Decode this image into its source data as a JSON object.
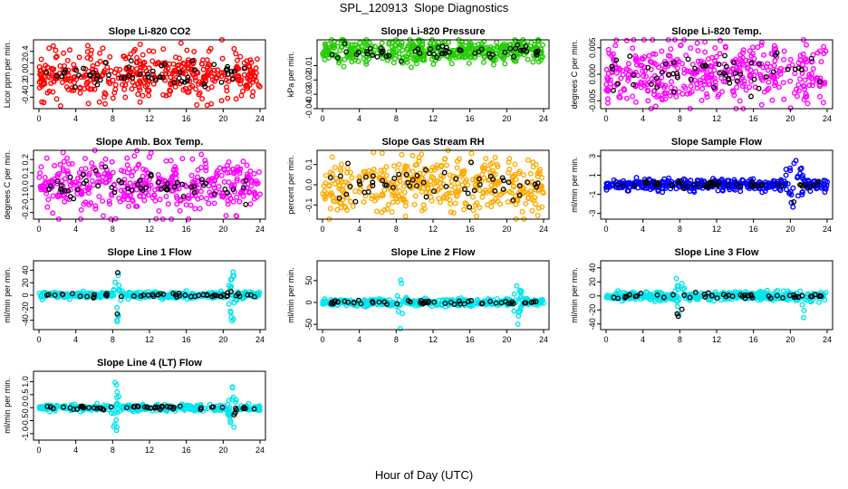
{
  "title": "SPL_120913  Slope Diagnostics",
  "xlabel": "Hour of Day (UTC)",
  "colors": {
    "black": "#000000",
    "red": "#ff0000",
    "green": "#22cc00",
    "magenta": "#ff00ff",
    "orange": "#ffaa00",
    "blue": "#0000ff",
    "cyan": "#00e5ee"
  },
  "chart_data": [
    {
      "type": "scatter",
      "title": "Slope Li-820 CO2",
      "ylabel": "Licor ppm per min.",
      "color": "red",
      "xlim": [
        0,
        24
      ],
      "ylim": [
        -0.6,
        0.6
      ],
      "xticks": [
        "0",
        "4",
        "8",
        "12",
        "16",
        "20",
        "24"
      ],
      "yticks": [
        "-0.4",
        "-0.2",
        "0.0",
        "0.2",
        "0.4"
      ],
      "spread": 0.22,
      "spikes": []
    },
    {
      "type": "scatter",
      "title": "Slope Li-820 Pressure",
      "ylabel": "kPa per min.",
      "color": "green",
      "xlim": [
        0,
        24
      ],
      "ylim": [
        -0.04,
        0.008
      ],
      "xticks": [
        "0",
        "4",
        "8",
        "12",
        "16",
        "20",
        "24"
      ],
      "yticks": [
        "-0.04",
        "-0.03",
        "-0.02",
        "-0.01"
      ],
      "center": 0.0,
      "spread": 0.004,
      "spikes": []
    },
    {
      "type": "scatter",
      "title": "Slope Li-820 Temp.",
      "ylabel": "degrees C per min.",
      "color": "magenta",
      "xlim": [
        0,
        24
      ],
      "ylim": [
        -0.0065,
        0.0065
      ],
      "xticks": [
        "0",
        "4",
        "8",
        "12",
        "16",
        "20",
        "24"
      ],
      "yticks": [
        "-0.005",
        "0.000",
        "0.005"
      ],
      "spread": 0.003,
      "spikes": []
    },
    {
      "type": "scatter",
      "title": "Slope Amb. Box Temp.",
      "ylabel": "degrees C per min.",
      "color": "magenta",
      "xlim": [
        0,
        24
      ],
      "ylim": [
        -0.25,
        0.27
      ],
      "xticks": [
        "0",
        "4",
        "8",
        "12",
        "16",
        "20",
        "24"
      ],
      "yticks": [
        "-0.2",
        "-0.1",
        "0.0",
        "0.1",
        "0.2"
      ],
      "spread": 0.1,
      "spikes": []
    },
    {
      "type": "scatter",
      "title": "Slope Gas Stream RH",
      "ylabel": "percent per min.",
      "color": "orange",
      "xlim": [
        0,
        24
      ],
      "ylim": [
        -0.17,
        0.17
      ],
      "xticks": [
        "0",
        "4",
        "8",
        "12",
        "16",
        "20",
        "24"
      ],
      "yticks": [
        "-0.1",
        "0.0",
        "0.1"
      ],
      "spread": 0.07,
      "spikes": []
    },
    {
      "type": "scatter",
      "title": "Slope Sample Flow",
      "ylabel": "ml/min per min.",
      "color": "blue",
      "xlim": [
        0,
        24
      ],
      "ylim": [
        -3.6,
        3.6
      ],
      "xticks": [
        "0",
        "4",
        "8",
        "12",
        "16",
        "20",
        "24"
      ],
      "yticks": [
        "-3",
        "-1",
        "1",
        "3"
      ],
      "spread": 0.3,
      "spikes": [
        {
          "hour": 20.5,
          "amp": 3.2,
          "width": 1.3
        }
      ]
    },
    {
      "type": "scatter",
      "title": "Slope Line 1 Flow",
      "ylabel": "ml/min per min.",
      "color": "cyan",
      "xlim": [
        0,
        24
      ],
      "ylim": [
        -55,
        55
      ],
      "xticks": [
        "0",
        "4",
        "8",
        "12",
        "16",
        "20",
        "24"
      ],
      "yticks": [
        "-40",
        "-20",
        "0",
        "20",
        "40"
      ],
      "spread": 2.5,
      "spikes": [
        {
          "hour": 8.5,
          "amp": 45,
          "width": 0.6
        },
        {
          "hour": 21.0,
          "amp": 45,
          "width": 0.6
        }
      ]
    },
    {
      "type": "scatter",
      "title": "Slope Line 2 Flow",
      "ylabel": "ml/min per min.",
      "color": "cyan",
      "xlim": [
        0,
        24
      ],
      "ylim": [
        -62,
        95
      ],
      "xticks": [
        "0",
        "4",
        "8",
        "12",
        "16",
        "20",
        "24"
      ],
      "yticks": [
        "-50",
        "0",
        "50"
      ],
      "spread": 4,
      "spikes": [
        {
          "hour": 8.5,
          "amp": 75,
          "width": 0.6
        },
        {
          "hour": 21.2,
          "amp": 60,
          "width": 0.6
        }
      ]
    },
    {
      "type": "scatter",
      "title": "Slope Line 3 Flow",
      "ylabel": "ml/min per min.",
      "color": "cyan",
      "xlim": [
        0,
        24
      ],
      "ylim": [
        -48,
        50
      ],
      "xticks": [
        "0",
        "4",
        "8",
        "12",
        "16",
        "20",
        "24"
      ],
      "yticks": [
        "-40",
        "-20",
        "0",
        "20",
        "40"
      ],
      "spread": 3,
      "spikes": [
        {
          "hour": 8.0,
          "amp": 42,
          "width": 0.7
        },
        {
          "hour": 21.5,
          "amp": 38,
          "width": 0.6
        }
      ]
    },
    {
      "type": "scatter",
      "title": "Slope Line 4 (LT) Flow",
      "ylabel": "ml/min per min.",
      "color": "cyan",
      "xlim": [
        0,
        24
      ],
      "ylim": [
        -1.25,
        1.4
      ],
      "xticks": [
        "0",
        "4",
        "8",
        "12",
        "16",
        "20",
        "24"
      ],
      "yticks": [
        "-1.0",
        "-0.5",
        "0.0",
        "0.5",
        "1.0"
      ],
      "spread": 0.06,
      "spikes": [
        {
          "hour": 8.3,
          "amp": 1.1,
          "width": 0.6
        },
        {
          "hour": 21.0,
          "amp": 1.0,
          "width": 0.6
        }
      ]
    }
  ]
}
